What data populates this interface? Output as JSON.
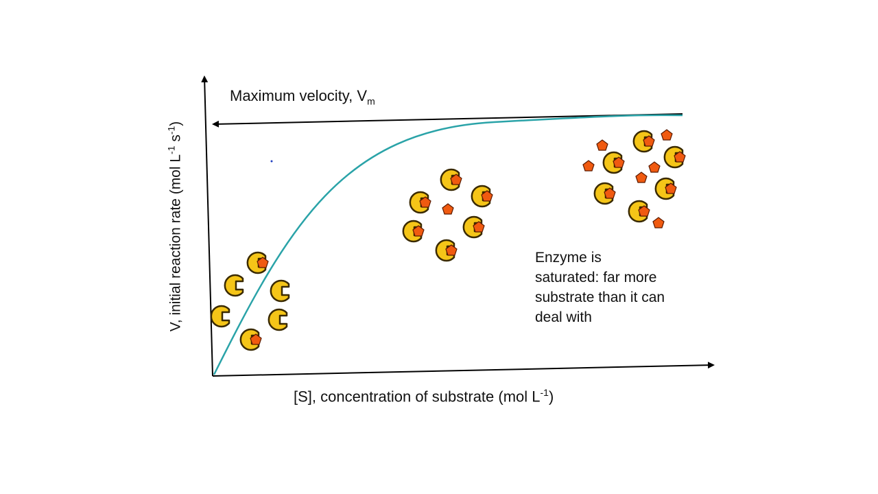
{
  "diagram": {
    "vmax_label": "Maximum velocity, V",
    "vmax_sub": "m",
    "y_axis_label": "V, initial reaction rate (mol L",
    "y_axis_sup1": "-1",
    "y_axis_mid": " s",
    "y_axis_sup2": "-1",
    "y_axis_end": ")",
    "x_axis_label": "[S], concentration of substrate (mol L",
    "x_axis_sup": "-1",
    "x_axis_end": ")",
    "annotation_lines": [
      "Enzyme is",
      "saturated: far more",
      "substrate than it can",
      "deal with"
    ],
    "colors": {
      "curve": "#2aa3a8",
      "enzyme": "#f5c518",
      "enzyme_outline": "#3a2a00",
      "substrate": "#f05a10",
      "axes": "#000000"
    }
  }
}
